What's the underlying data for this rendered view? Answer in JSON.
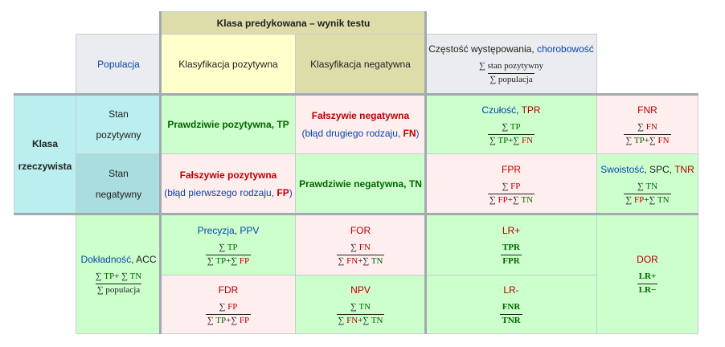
{
  "header": {
    "predicted": "Klasa predykowana – wynik testu",
    "population": "Populacja",
    "pred_pos": "Klasyfikacja pozytywna",
    "pred_neg": "Klasyfikacja negatywna",
    "prevalence_label_a": "Częstość występowania, ",
    "prevalence_label_b": "chorobowość",
    "prevalence_num": "∑ stan pozytywny",
    "prevalence_den": "∑ populacja"
  },
  "actual": {
    "label_line1": "Klasa",
    "label_line2": "rzeczywista",
    "cond_pos_1": "Stan",
    "cond_pos_2": "pozytywny",
    "cond_neg_1": "Stan",
    "cond_neg_2": "negatywny"
  },
  "cells": {
    "tp_label": "Prawdziwie pozytywna, ",
    "tp_abbr": "TP",
    "fn_label": "Fałszywie negatywna",
    "fn_sub_a": "(błąd drugiego rodzaju, ",
    "fn_sub_b": "FN",
    "fn_sub_c": ")",
    "fp_label": "Fałszywie pozytywna",
    "fp_sub_a": "(błąd pierwszego rodzaju, ",
    "fp_sub_b": "FP",
    "fp_sub_c": ")",
    "tn_label": "Prawdziwie negatywna, ",
    "tn_abbr": "TN"
  },
  "metrics": {
    "tpr_a": "Czułość",
    "tpr_b": ", ",
    "tpr_c": "TPR",
    "fnr": "FNR",
    "fpr": "FPR",
    "tnr_a": "Swoistość",
    "tnr_b": ", SPC, ",
    "tnr_c": "TNR",
    "ppv_a": "Precyzja",
    "ppv_b": ", ",
    "ppv_c": "PPV",
    "for": "FOR",
    "fdr": "FDR",
    "npv": "NPV",
    "acc_a": "Dokładność",
    "acc_b": ", ACC",
    "acc_den": "∑ populacja",
    "lrp": "LR+",
    "lrp_num": "TPR",
    "lrp_den": "FPR",
    "lrn": "LR-",
    "lrn_num": "FNR",
    "lrn_den": "TNR",
    "dor": "DOR",
    "dor_num": "LR+",
    "dor_den": "LR−"
  },
  "symbols": {
    "sum": "∑",
    "plus": "+",
    "tp": "TP",
    "fn": "FN",
    "fp": "FP",
    "tn": "TN"
  },
  "colors": {
    "header_gray": "#eaecf0",
    "pred_pos_yellow": "#ffffcc",
    "pred_neg_olive": "#ddddaa",
    "actual_cyan": "#bbeeee",
    "cond_neg_teal": "#aadddd",
    "correct_green": "#ccffcc",
    "error_pink": "#ffeeee",
    "link_blue": "#0645ad",
    "error_red": "#ba0000",
    "correct_green_text": "#006400"
  }
}
